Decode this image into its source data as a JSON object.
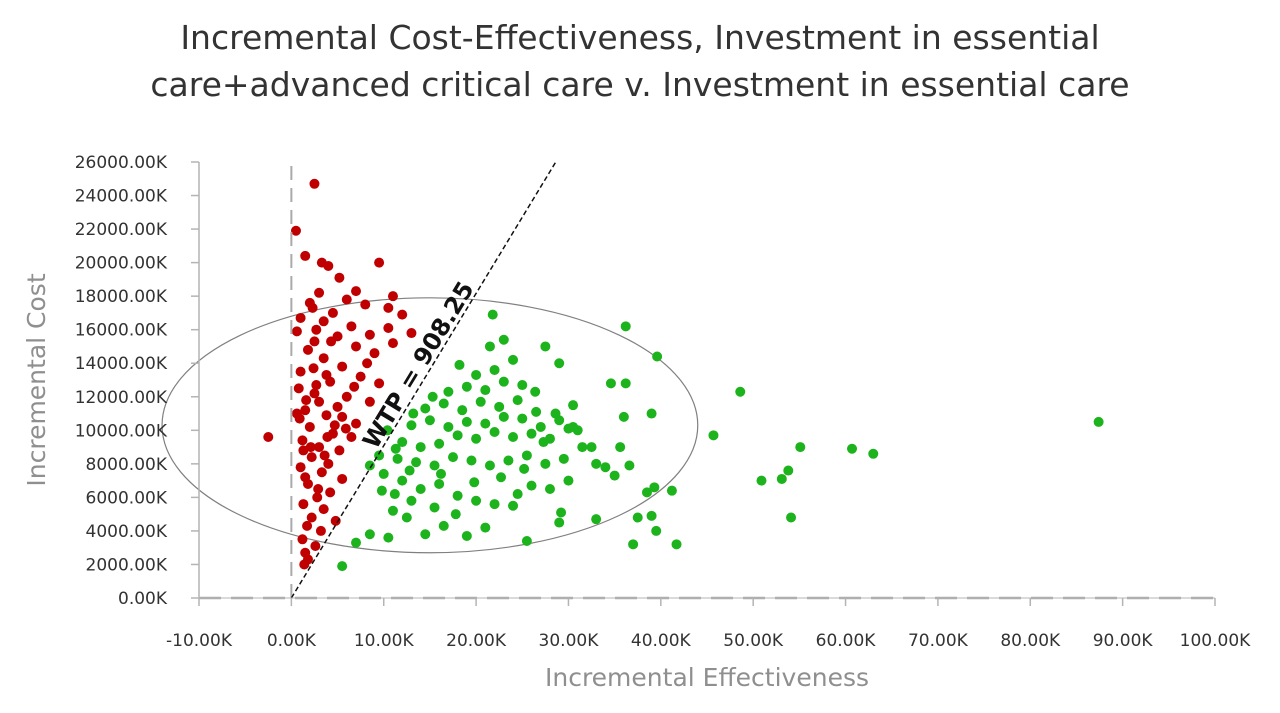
{
  "chart_data": {
    "type": "scatter",
    "title_lines": [
      "Incremental Cost-Effectiveness, Investment in essential",
      "care+advanced critical care v. Investment in essential care"
    ],
    "xlabel": "Incremental Effectiveness",
    "ylabel": "Incremental Cost",
    "xlim": [
      -10000,
      100000
    ],
    "ylim": [
      0,
      26000000
    ],
    "x_ticks": [
      -10000,
      0,
      10000,
      20000,
      30000,
      40000,
      50000,
      60000,
      70000,
      80000,
      90000,
      100000
    ],
    "x_tick_labels": [
      "-10.00K",
      "0.00K",
      "10.00K",
      "20.00K",
      "30.00K",
      "40.00K",
      "50.00K",
      "60.00K",
      "70.00K",
      "80.00K",
      "90.00K",
      "100.00K"
    ],
    "y_ticks": [
      0,
      2000000,
      4000000,
      6000000,
      8000000,
      10000000,
      12000000,
      14000000,
      16000000,
      18000000,
      20000000,
      22000000,
      24000000,
      26000000
    ],
    "y_tick_labels": [
      "0.00K",
      "2000.00K",
      "4000.00K",
      "6000.00K",
      "8000.00K",
      "10000.00K",
      "12000.00K",
      "14000.00K",
      "16000.00K",
      "18000.00K",
      "20000.00K",
      "22000.00K",
      "24000.00K",
      "26000.00K"
    ],
    "grid": false,
    "wtp": {
      "label": "WTP = 908.25",
      "slope": 908.25
    },
    "confidence_ellipse": {
      "center": [
        15000,
        10300000
      ],
      "semi_axis_x": 29000,
      "semi_axis_y": 7600000
    },
    "colors": {
      "above_wtp": "#c00000",
      "below_wtp": "#1db31d",
      "reference_line": "#111111",
      "zero_axes": "#aaaaaa",
      "ellipse": "#808080"
    },
    "series": [
      {
        "values": [
          [
            -2500,
            9600000
          ],
          [
            2500,
            24700000
          ],
          [
            500,
            21900000
          ],
          [
            1500,
            20400000
          ],
          [
            3300,
            20000000
          ],
          [
            4000,
            19800000
          ],
          [
            5200,
            19100000
          ],
          [
            9500,
            20000000
          ],
          [
            7000,
            18300000
          ],
          [
            11000,
            18000000
          ],
          [
            3000,
            18200000
          ],
          [
            2000,
            17600000
          ],
          [
            6000,
            17800000
          ],
          [
            8000,
            17500000
          ],
          [
            10500,
            17300000
          ],
          [
            12000,
            16900000
          ],
          [
            4500,
            17000000
          ],
          [
            1000,
            16700000
          ],
          [
            3500,
            16500000
          ],
          [
            6500,
            16200000
          ],
          [
            8500,
            15700000
          ],
          [
            10500,
            16100000
          ],
          [
            13000,
            15800000
          ],
          [
            5000,
            15600000
          ],
          [
            2500,
            15300000
          ],
          [
            7000,
            15000000
          ],
          [
            9000,
            14600000
          ],
          [
            11000,
            15200000
          ],
          [
            3500,
            14300000
          ],
          [
            5500,
            13800000
          ],
          [
            1000,
            13500000
          ],
          [
            4200,
            12900000
          ],
          [
            7500,
            13200000
          ],
          [
            9500,
            12800000
          ],
          [
            2500,
            12200000
          ],
          [
            6000,
            12000000
          ],
          [
            8500,
            11700000
          ],
          [
            1500,
            11200000
          ],
          [
            3800,
            10900000
          ],
          [
            5500,
            10800000
          ],
          [
            7000,
            10400000
          ],
          [
            2000,
            10200000
          ],
          [
            4500,
            9800000
          ],
          [
            6500,
            9600000
          ],
          [
            1200,
            9400000
          ],
          [
            3000,
            9000000
          ],
          [
            5200,
            8800000
          ],
          [
            2200,
            8400000
          ],
          [
            4000,
            8000000
          ],
          [
            1000,
            7800000
          ],
          [
            3300,
            7500000
          ],
          [
            5500,
            7100000
          ],
          [
            1800,
            6800000
          ],
          [
            4200,
            6300000
          ],
          [
            2800,
            6000000
          ],
          [
            1300,
            5600000
          ],
          [
            3500,
            5300000
          ],
          [
            2200,
            4800000
          ],
          [
            4800,
            4600000
          ],
          [
            1700,
            4300000
          ],
          [
            3200,
            4000000
          ],
          [
            1200,
            3500000
          ],
          [
            2600,
            3100000
          ],
          [
            1500,
            2700000
          ],
          [
            1800,
            2300000
          ],
          [
            1400,
            2000000
          ],
          [
            800,
            12500000
          ],
          [
            1800,
            14800000
          ],
          [
            600,
            11000000
          ],
          [
            2700,
            16000000
          ],
          [
            3800,
            13300000
          ],
          [
            5000,
            11400000
          ],
          [
            6800,
            12600000
          ],
          [
            8200,
            14000000
          ],
          [
            3000,
            11700000
          ],
          [
            4700,
            10300000
          ],
          [
            2100,
            9000000
          ],
          [
            3600,
            8500000
          ],
          [
            2900,
            6500000
          ],
          [
            1500,
            7200000
          ],
          [
            900,
            10700000
          ],
          [
            2400,
            13700000
          ],
          [
            4300,
            15300000
          ],
          [
            1300,
            8800000
          ],
          [
            3900,
            9600000
          ],
          [
            5900,
            10100000
          ],
          [
            2700,
            12700000
          ],
          [
            1600,
            11800000
          ],
          [
            600,
            15900000
          ],
          [
            2300,
            17300000
          ]
        ]
      },
      {
        "values": [
          [
            5500,
            1900000
          ],
          [
            7000,
            3300000
          ],
          [
            8500,
            3800000
          ],
          [
            10500,
            3600000
          ],
          [
            11000,
            5200000
          ],
          [
            12500,
            4800000
          ],
          [
            14500,
            3800000
          ],
          [
            16500,
            4300000
          ],
          [
            19000,
            3700000
          ],
          [
            21000,
            4200000
          ],
          [
            25500,
            3400000
          ],
          [
            29000,
            4500000
          ],
          [
            29200,
            5100000
          ],
          [
            33000,
            4700000
          ],
          [
            37000,
            3200000
          ],
          [
            37500,
            4800000
          ],
          [
            39000,
            4900000
          ],
          [
            41700,
            3200000
          ],
          [
            39500,
            4000000
          ],
          [
            38500,
            6300000
          ],
          [
            41200,
            6400000
          ],
          [
            39300,
            6600000
          ],
          [
            35000,
            7300000
          ],
          [
            36600,
            7900000
          ],
          [
            30000,
            7000000
          ],
          [
            28000,
            6500000
          ],
          [
            24500,
            6200000
          ],
          [
            22000,
            5600000
          ],
          [
            20000,
            5800000
          ],
          [
            18000,
            6100000
          ],
          [
            16000,
            6800000
          ],
          [
            14000,
            6500000
          ],
          [
            12000,
            7000000
          ],
          [
            10000,
            7400000
          ],
          [
            8500,
            7900000
          ],
          [
            9500,
            8500000
          ],
          [
            11500,
            8300000
          ],
          [
            13500,
            8100000
          ],
          [
            15500,
            7900000
          ],
          [
            17500,
            8400000
          ],
          [
            19500,
            8200000
          ],
          [
            21500,
            7900000
          ],
          [
            23500,
            8200000
          ],
          [
            25500,
            8500000
          ],
          [
            27500,
            8000000
          ],
          [
            29500,
            8300000
          ],
          [
            12000,
            9300000
          ],
          [
            14000,
            9000000
          ],
          [
            16000,
            9200000
          ],
          [
            18000,
            9700000
          ],
          [
            20000,
            9500000
          ],
          [
            22000,
            9900000
          ],
          [
            24000,
            9600000
          ],
          [
            26000,
            9800000
          ],
          [
            28000,
            9500000
          ],
          [
            30000,
            10100000
          ],
          [
            13000,
            10300000
          ],
          [
            15000,
            10600000
          ],
          [
            17000,
            10200000
          ],
          [
            19000,
            10500000
          ],
          [
            21000,
            10400000
          ],
          [
            23000,
            10800000
          ],
          [
            25000,
            10700000
          ],
          [
            27000,
            10200000
          ],
          [
            29000,
            10600000
          ],
          [
            31000,
            10000000
          ],
          [
            14500,
            11300000
          ],
          [
            16500,
            11600000
          ],
          [
            18500,
            11200000
          ],
          [
            20500,
            11700000
          ],
          [
            22500,
            11400000
          ],
          [
            24500,
            11800000
          ],
          [
            26500,
            11100000
          ],
          [
            17000,
            12300000
          ],
          [
            19000,
            12600000
          ],
          [
            21000,
            12400000
          ],
          [
            23000,
            12900000
          ],
          [
            20000,
            13300000
          ],
          [
            22000,
            13600000
          ],
          [
            24000,
            14200000
          ],
          [
            21500,
            15000000
          ],
          [
            23000,
            15400000
          ],
          [
            21800,
            16900000
          ],
          [
            25000,
            12700000
          ],
          [
            27500,
            15000000
          ],
          [
            29000,
            14000000
          ],
          [
            30500,
            11500000
          ],
          [
            30500,
            10200000
          ],
          [
            31500,
            9000000
          ],
          [
            33000,
            8000000
          ],
          [
            36200,
            16200000
          ],
          [
            39600,
            14400000
          ],
          [
            34600,
            12800000
          ],
          [
            36200,
            12800000
          ],
          [
            36000,
            10800000
          ],
          [
            39000,
            11000000
          ],
          [
            35600,
            9000000
          ],
          [
            45700,
            9700000
          ],
          [
            48600,
            12300000
          ],
          [
            50900,
            7000000
          ],
          [
            53100,
            7100000
          ],
          [
            53800,
            7600000
          ],
          [
            54100,
            4800000
          ],
          [
            55100,
            9000000
          ],
          [
            60700,
            8900000
          ],
          [
            63000,
            8600000
          ],
          [
            87400,
            10500000
          ],
          [
            32500,
            9000000
          ],
          [
            34000,
            7800000
          ],
          [
            26000,
            6700000
          ],
          [
            24000,
            5500000
          ],
          [
            13000,
            5800000
          ],
          [
            15500,
            5400000
          ],
          [
            17800,
            5000000
          ],
          [
            9800,
            6400000
          ],
          [
            11200,
            6200000
          ],
          [
            19800,
            6900000
          ],
          [
            22700,
            7200000
          ],
          [
            12800,
            7600000
          ],
          [
            16200,
            7400000
          ],
          [
            25200,
            7700000
          ],
          [
            27300,
            9300000
          ],
          [
            28600,
            11000000
          ],
          [
            26400,
            12300000
          ],
          [
            18200,
            13900000
          ],
          [
            11300,
            8900000
          ],
          [
            13200,
            11000000
          ],
          [
            15300,
            12000000
          ],
          [
            10400,
            10000000
          ]
        ]
      }
    ]
  }
}
